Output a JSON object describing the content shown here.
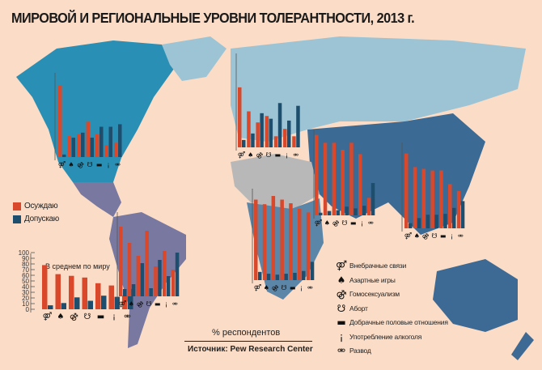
{
  "title": "МИРОВОЙ И РЕГИОНАЛЬНЫЕ УРОВНИ ТОЛЕРАНТНОСТИ, 2013 г.",
  "legend": {
    "condemn": {
      "label": "Осуждаю",
      "color": "#d9482b"
    },
    "accept": {
      "label": "Допускаю",
      "color": "#1d4e6e"
    }
  },
  "categories": [
    {
      "label": "Внебрачные связи",
      "icon": "adultery-icon",
      "glyph": "⚤"
    },
    {
      "label": "Азартные игры",
      "icon": "gambling-cards-icon",
      "glyph": "♠"
    },
    {
      "label": "Гомосексуализм",
      "icon": "homosexuality-icon",
      "glyph": "⚣"
    },
    {
      "label": "Аборт",
      "icon": "abortion-icon",
      "glyph": "☋"
    },
    {
      "label": "Добрачные половые отношения",
      "icon": "premarital-sex-icon",
      "glyph": "▬"
    },
    {
      "label": "Употребление алкоголя",
      "icon": "alcohol-icon",
      "glyph": "¡"
    },
    {
      "label": "Развод",
      "icon": "divorce-icon",
      "glyph": "⚮"
    }
  ],
  "footer": {
    "unit": "% респондентов",
    "source": "Источник: Pew Research Center"
  },
  "chart_data": [
    {
      "type": "bar",
      "title": "В среднем по миру",
      "ylim": [
        0,
        100
      ],
      "yticks": [
        "0",
        "10",
        "20",
        "30",
        "40",
        "50",
        "60",
        "70",
        "80",
        "90",
        "100"
      ],
      "series": [
        {
          "name": "Осуждаю",
          "values": [
            78,
            62,
            59,
            56,
            46,
            42,
            24
          ]
        },
        {
          "name": "Допускаю",
          "values": [
            7,
            11,
            21,
            15,
            24,
            22,
            36
          ]
        }
      ]
    },
    {
      "type": "bar",
      "region": "north-america",
      "ylim": [
        0,
        100
      ],
      "series": [
        {
          "name": "Осуждаю",
          "values": [
            85,
            25,
            27,
            42,
            27,
            14,
            17
          ]
        },
        {
          "name": "Допускаю",
          "values": [
            3,
            23,
            29,
            23,
            36,
            36,
            39
          ]
        }
      ]
    },
    {
      "type": "bar",
      "region": "europe",
      "ylim": [
        0,
        100
      ],
      "series": [
        {
          "name": "Осуждаю",
          "values": [
            65,
            39,
            27,
            34,
            12,
            20,
            12
          ]
        },
        {
          "name": "Допускаю",
          "values": [
            8,
            15,
            37,
            31,
            48,
            29,
            45
          ]
        }
      ]
    },
    {
      "type": "bar",
      "region": "middle-east",
      "ylim": [
        0,
        100
      ],
      "series": [
        {
          "name": "Осуждаю",
          "values": [
            92,
            83,
            83,
            75,
            83,
            70,
            20
          ]
        },
        {
          "name": "Допускаю",
          "values": [
            3,
            5,
            6,
            10,
            8,
            11,
            37
          ]
        }
      ]
    },
    {
      "type": "bar",
      "region": "asia-pacific",
      "ylim": [
        0,
        100
      ],
      "series": [
        {
          "name": "Осуждаю",
          "values": [
            88,
            72,
            70,
            68,
            68,
            52,
            44
          ]
        },
        {
          "name": "Допускаю",
          "values": [
            6,
            12,
            16,
            16,
            17,
            24,
            32
          ]
        }
      ]
    },
    {
      "type": "bar",
      "region": "africa",
      "ylim": [
        0,
        100
      ],
      "series": [
        {
          "name": "Осуждаю",
          "values": [
            88,
            83,
            92,
            88,
            84,
            78,
            74
          ]
        },
        {
          "name": "Допускаю",
          "values": [
            9,
            7,
            6,
            7,
            8,
            10,
            20
          ]
        }
      ]
    },
    {
      "type": "bar",
      "region": "latin-america",
      "ylim": [
        0,
        100
      ],
      "series": [
        {
          "name": "Осуждаю",
          "values": [
            86,
            66,
            50,
            81,
            37,
            56,
            33
          ]
        },
        {
          "name": "Допускаю",
          "values": [
            9,
            15,
            41,
            10,
            45,
            25,
            54
          ]
        }
      ]
    }
  ]
}
